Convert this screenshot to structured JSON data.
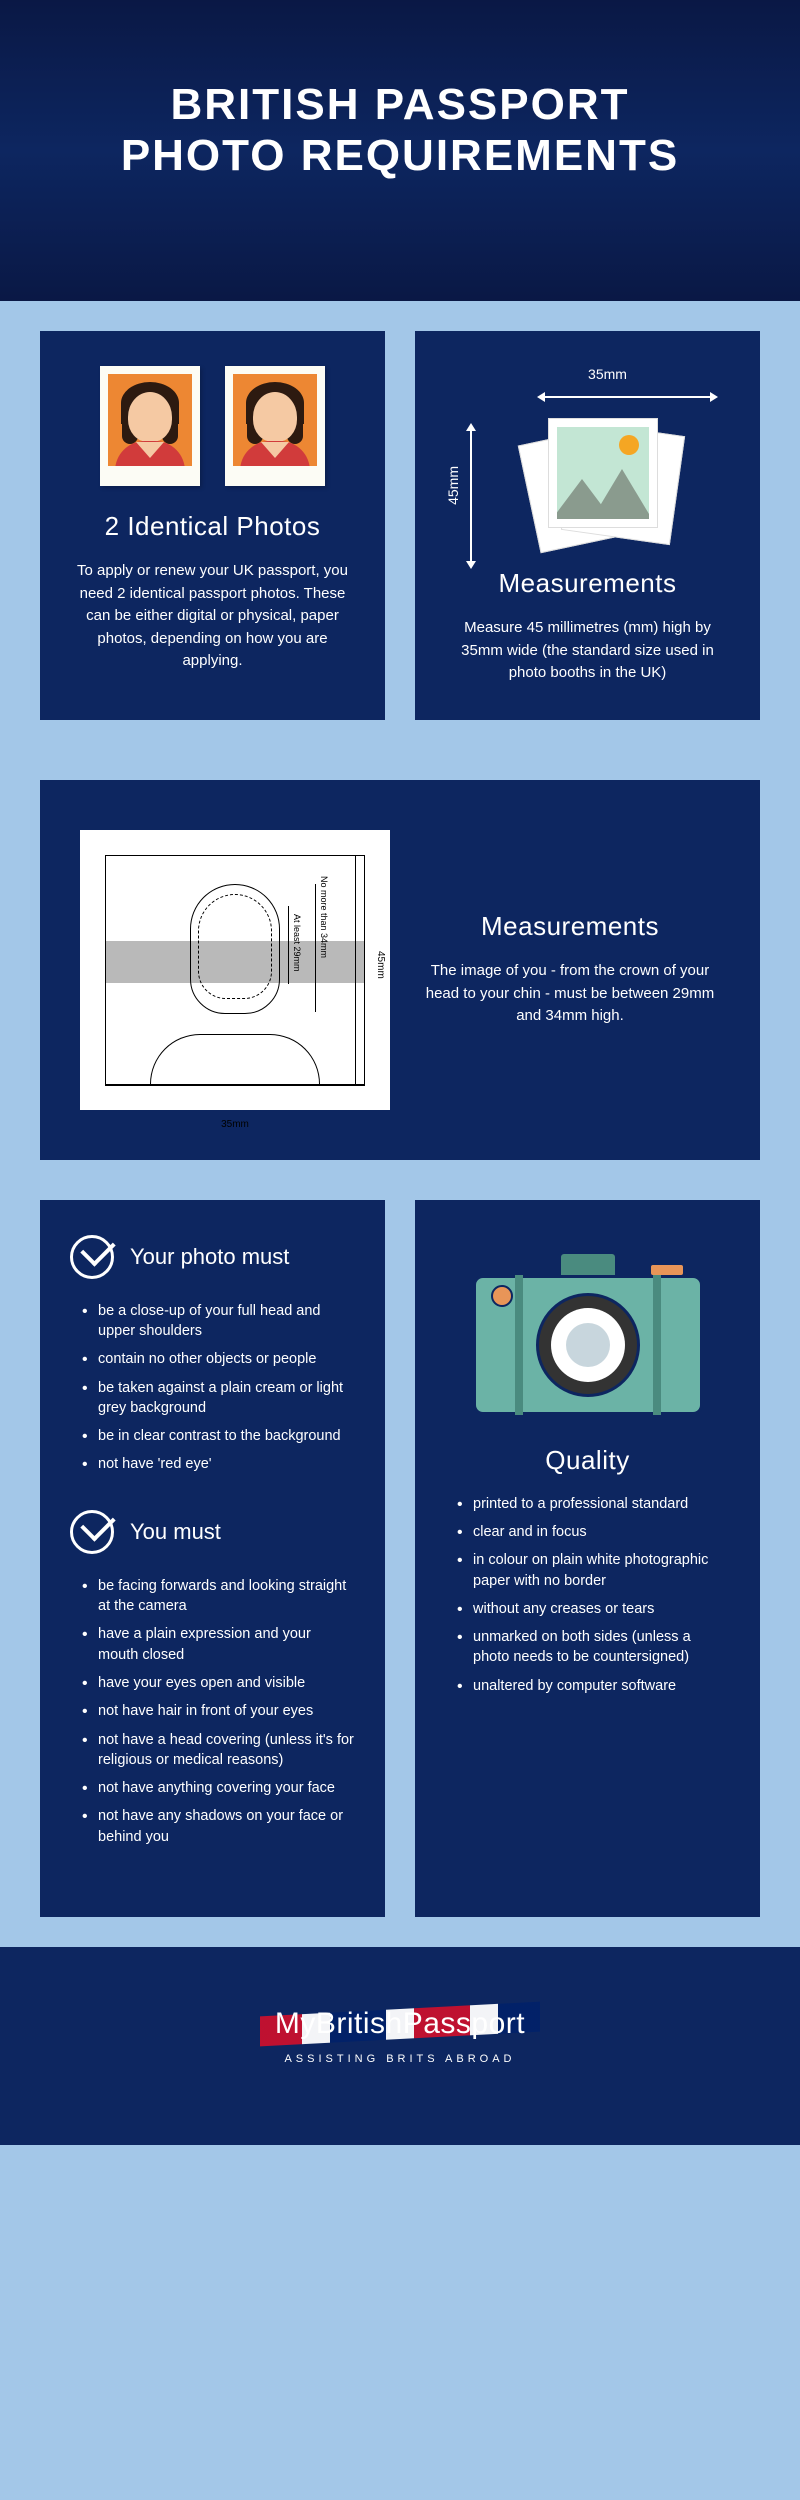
{
  "colors": {
    "page_bg": "#a3c7e8",
    "card_bg": "#0d2660",
    "header_gradient_start": "#0a1845",
    "header_gradient_end": "#0d2660",
    "text": "#ffffff",
    "photo_frame": "#fcfcf5",
    "photo_bg": "#ed8733",
    "skin": "#f5c9a3",
    "hair": "#2d1a10",
    "clothing": "#d13b3b",
    "camera_body": "#6bb3a6",
    "camera_accent": "#e89558",
    "diagram_band": "#adadad"
  },
  "typography": {
    "title_size": 44,
    "heading_size": 26,
    "subheading_size": 22,
    "body_size": 15,
    "list_size": 14.5
  },
  "header": {
    "title_line1": "BRITISH PASSPORT",
    "title_line2": "PHOTO REQUIREMENTS"
  },
  "card_photos": {
    "heading": "2 Identical Photos",
    "body": "To apply or renew your UK passport, you need 2 identical passport photos. These can be either digital or physical, paper photos, depending on how you are applying."
  },
  "card_measurements1": {
    "width_label": "35mm",
    "height_label": "45mm",
    "heading": "Measurements",
    "body": "Measure 45 millimetres (mm) high by 35mm wide (the standard size used in photo booths in the UK)"
  },
  "card_measurements2": {
    "heading": "Measurements",
    "body": "The image of you - from the crown of your head to your chin - must be between 29mm and 34mm high.",
    "diagram": {
      "outer_height": "45mm",
      "outer_width": "35mm",
      "max_head": "No more than 34mm",
      "min_head": "At least 29mm"
    }
  },
  "card_photo_must": {
    "heading": "Your photo must",
    "items": [
      "be a close-up of your full head and upper shoulders",
      "contain no other objects or people",
      "be taken against a plain cream or light grey background",
      "be in clear contrast to the background",
      "not have 'red eye'"
    ]
  },
  "card_you_must": {
    "heading": "You must",
    "items": [
      "be facing forwards and looking straight at the camera",
      "have a plain expression and your mouth closed",
      "have your eyes open and visible",
      "not have hair in front of your eyes",
      "not have a head covering (unless it's for religious or medical reasons)",
      "not have anything covering your face",
      "not have any shadows on your face or behind you"
    ]
  },
  "card_quality": {
    "heading": "Quality",
    "items": [
      "printed to a professional standard",
      "clear and in focus",
      "in colour on plain white photographic paper with no border",
      "without any creases or tears",
      "unmarked on both sides (unless a photo needs to be countersigned)",
      "unaltered by computer software"
    ]
  },
  "footer": {
    "brand": "MyBritishPassport",
    "tagline": "ASSISTING BRITS ABROAD"
  }
}
